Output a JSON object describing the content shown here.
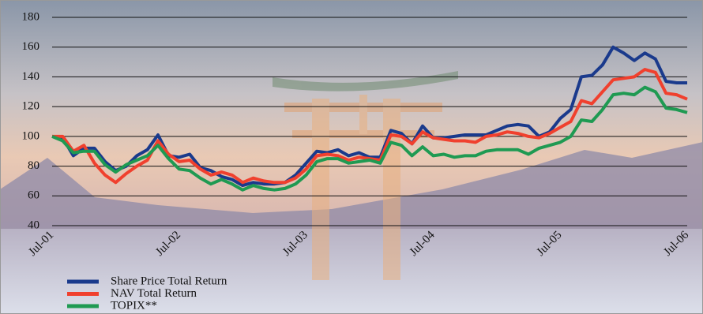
{
  "chart_data": {
    "type": "line",
    "categories": [
      "Jul-01",
      null,
      null,
      null,
      null,
      null,
      null,
      null,
      null,
      null,
      null,
      null,
      "Jul-02",
      null,
      null,
      null,
      null,
      null,
      null,
      null,
      null,
      null,
      null,
      null,
      "Jul-03",
      null,
      null,
      null,
      null,
      null,
      null,
      null,
      null,
      null,
      null,
      null,
      "Jul-04",
      null,
      null,
      null,
      null,
      null,
      null,
      null,
      null,
      null,
      null,
      null,
      "Jul-05",
      null,
      null,
      null,
      null,
      null,
      null,
      null,
      null,
      null,
      null,
      null,
      "Jul-06"
    ],
    "series": [
      {
        "name": "Share Price Total Return",
        "color": "#1a3a8c",
        "values": [
          100,
          99,
          87,
          92,
          92,
          83,
          77,
          80,
          87,
          91,
          101,
          87,
          86,
          88,
          79,
          77,
          73,
          71,
          67,
          69,
          68,
          68,
          69,
          74,
          82,
          90,
          89,
          91,
          87,
          89,
          86,
          86,
          104,
          102,
          95,
          107,
          99,
          99,
          100,
          101,
          101,
          101,
          104,
          107,
          108,
          107,
          100,
          103,
          112,
          118,
          140,
          141,
          148,
          160,
          156,
          151,
          156,
          152,
          137,
          136,
          136
        ]
      },
      {
        "name": "NAV Total Return",
        "color": "#f0402e",
        "values": [
          100,
          100,
          90,
          94,
          82,
          74,
          69,
          75,
          80,
          84,
          97,
          88,
          83,
          84,
          78,
          74,
          76,
          74,
          69,
          72,
          70,
          69,
          69,
          72,
          78,
          87,
          88,
          87,
          84,
          86,
          85,
          84,
          101,
          100,
          95,
          103,
          99,
          98,
          97,
          97,
          96,
          100,
          101,
          103,
          102,
          100,
          99,
          102,
          106,
          110,
          124,
          122,
          130,
          138,
          139,
          140,
          145,
          143,
          129,
          128,
          125
        ]
      },
      {
        "name": "TOPIX**",
        "color": "#1f9a52",
        "values": [
          100,
          97,
          89,
          90,
          90,
          81,
          76,
          81,
          84,
          87,
          94,
          85,
          78,
          77,
          72,
          68,
          71,
          68,
          64,
          67,
          65,
          64,
          65,
          68,
          74,
          83,
          85,
          85,
          82,
          83,
          84,
          82,
          96,
          94,
          87,
          93,
          87,
          88,
          86,
          87,
          87,
          90,
          91,
          91,
          91,
          88,
          92,
          94,
          96,
          100,
          111,
          110,
          118,
          128,
          129,
          128,
          133,
          130,
          119,
          118,
          116
        ]
      }
    ],
    "ylim": [
      40,
      180
    ],
    "yticks": [
      40,
      60,
      80,
      100,
      120,
      140,
      160,
      180
    ],
    "grid": true,
    "legend": "lower left"
  }
}
